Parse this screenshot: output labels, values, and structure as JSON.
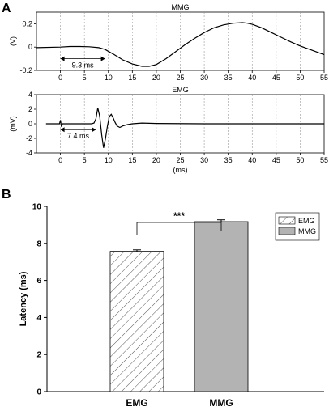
{
  "panel_labels": {
    "a": "A",
    "b": "B"
  },
  "chart_data": [
    {
      "type": "line",
      "title": "MMG",
      "ylabel": "(V)",
      "xlabel": "",
      "xlim": [
        -5,
        55
      ],
      "ylim": [
        -0.2,
        0.3
      ],
      "xticks": [
        0,
        5,
        10,
        15,
        20,
        25,
        30,
        35,
        40,
        45,
        50,
        55
      ],
      "yticks": [
        -0.2,
        0,
        0.2
      ],
      "vertical_gridlines": true,
      "annotation": {
        "text": "9.3 ms",
        "from_x": 0,
        "to_x": 9.3,
        "y": -0.1
      },
      "series": [
        {
          "x": [
            -5,
            0,
            2,
            4,
            6,
            8,
            9.3,
            11,
            13,
            15,
            17,
            18.5,
            20,
            22,
            24,
            26,
            28,
            30,
            32,
            34,
            36,
            38,
            39,
            40,
            42,
            44,
            46,
            48,
            50,
            52,
            54,
            55
          ],
          "y": [
            -0.005,
            0,
            0.005,
            0.005,
            0.003,
            -0.005,
            -0.02,
            -0.06,
            -0.11,
            -0.145,
            -0.165,
            -0.165,
            -0.15,
            -0.1,
            -0.04,
            0.02,
            0.075,
            0.125,
            0.165,
            0.19,
            0.205,
            0.21,
            0.205,
            0.195,
            0.165,
            0.125,
            0.085,
            0.045,
            0.01,
            -0.02,
            -0.05,
            -0.065
          ]
        }
      ]
    },
    {
      "type": "line",
      "title": "EMG",
      "ylabel": "(mV)",
      "xlabel": "(ms)",
      "xlim": [
        -5,
        55
      ],
      "ylim": [
        -4,
        4
      ],
      "xticks": [
        0,
        5,
        10,
        15,
        20,
        25,
        30,
        35,
        40,
        45,
        50,
        55
      ],
      "yticks": [
        -4,
        -2,
        0,
        2,
        4
      ],
      "vertical_gridlines": true,
      "annotation": {
        "text": "7.4 ms",
        "from_x": 0,
        "to_x": 7.4,
        "y": -0.8
      },
      "series": [
        {
          "x": [
            -3,
            -0.2,
            0,
            0.2,
            0.4,
            6.5,
            7,
            7.4,
            7.8,
            8.2,
            8.6,
            9.0,
            9.4,
            9.8,
            10.2,
            10.6,
            11.0,
            11.4,
            11.8,
            12.4,
            13,
            14,
            15,
            17,
            20,
            30,
            40,
            50,
            55
          ],
          "y": [
            0,
            0,
            0.5,
            -0.4,
            0,
            0,
            0.1,
            0.7,
            2.2,
            1.0,
            -1.5,
            -3.3,
            -2.0,
            -0.3,
            1.0,
            1.3,
            0.8,
            0.2,
            -0.3,
            -0.5,
            -0.3,
            -0.1,
            0,
            0.1,
            0.05,
            0,
            0,
            0,
            0
          ]
        }
      ]
    },
    {
      "type": "bar",
      "title": "",
      "xlabel": "",
      "ylabel": "Latency (ms)",
      "categories": [
        "EMG",
        "MMG"
      ],
      "values": [
        7.57,
        9.17
      ],
      "errors": [
        0.08,
        0.1
      ],
      "ylim": [
        0,
        10
      ],
      "yticks": [
        0,
        2,
        4,
        6,
        8,
        10
      ],
      "significance": "***",
      "legend": {
        "position": "top-right",
        "entries": [
          "EMG",
          "MMG"
        ]
      },
      "fills": {
        "EMG": "hatched",
        "MMG": "#b3b3b3"
      }
    }
  ]
}
